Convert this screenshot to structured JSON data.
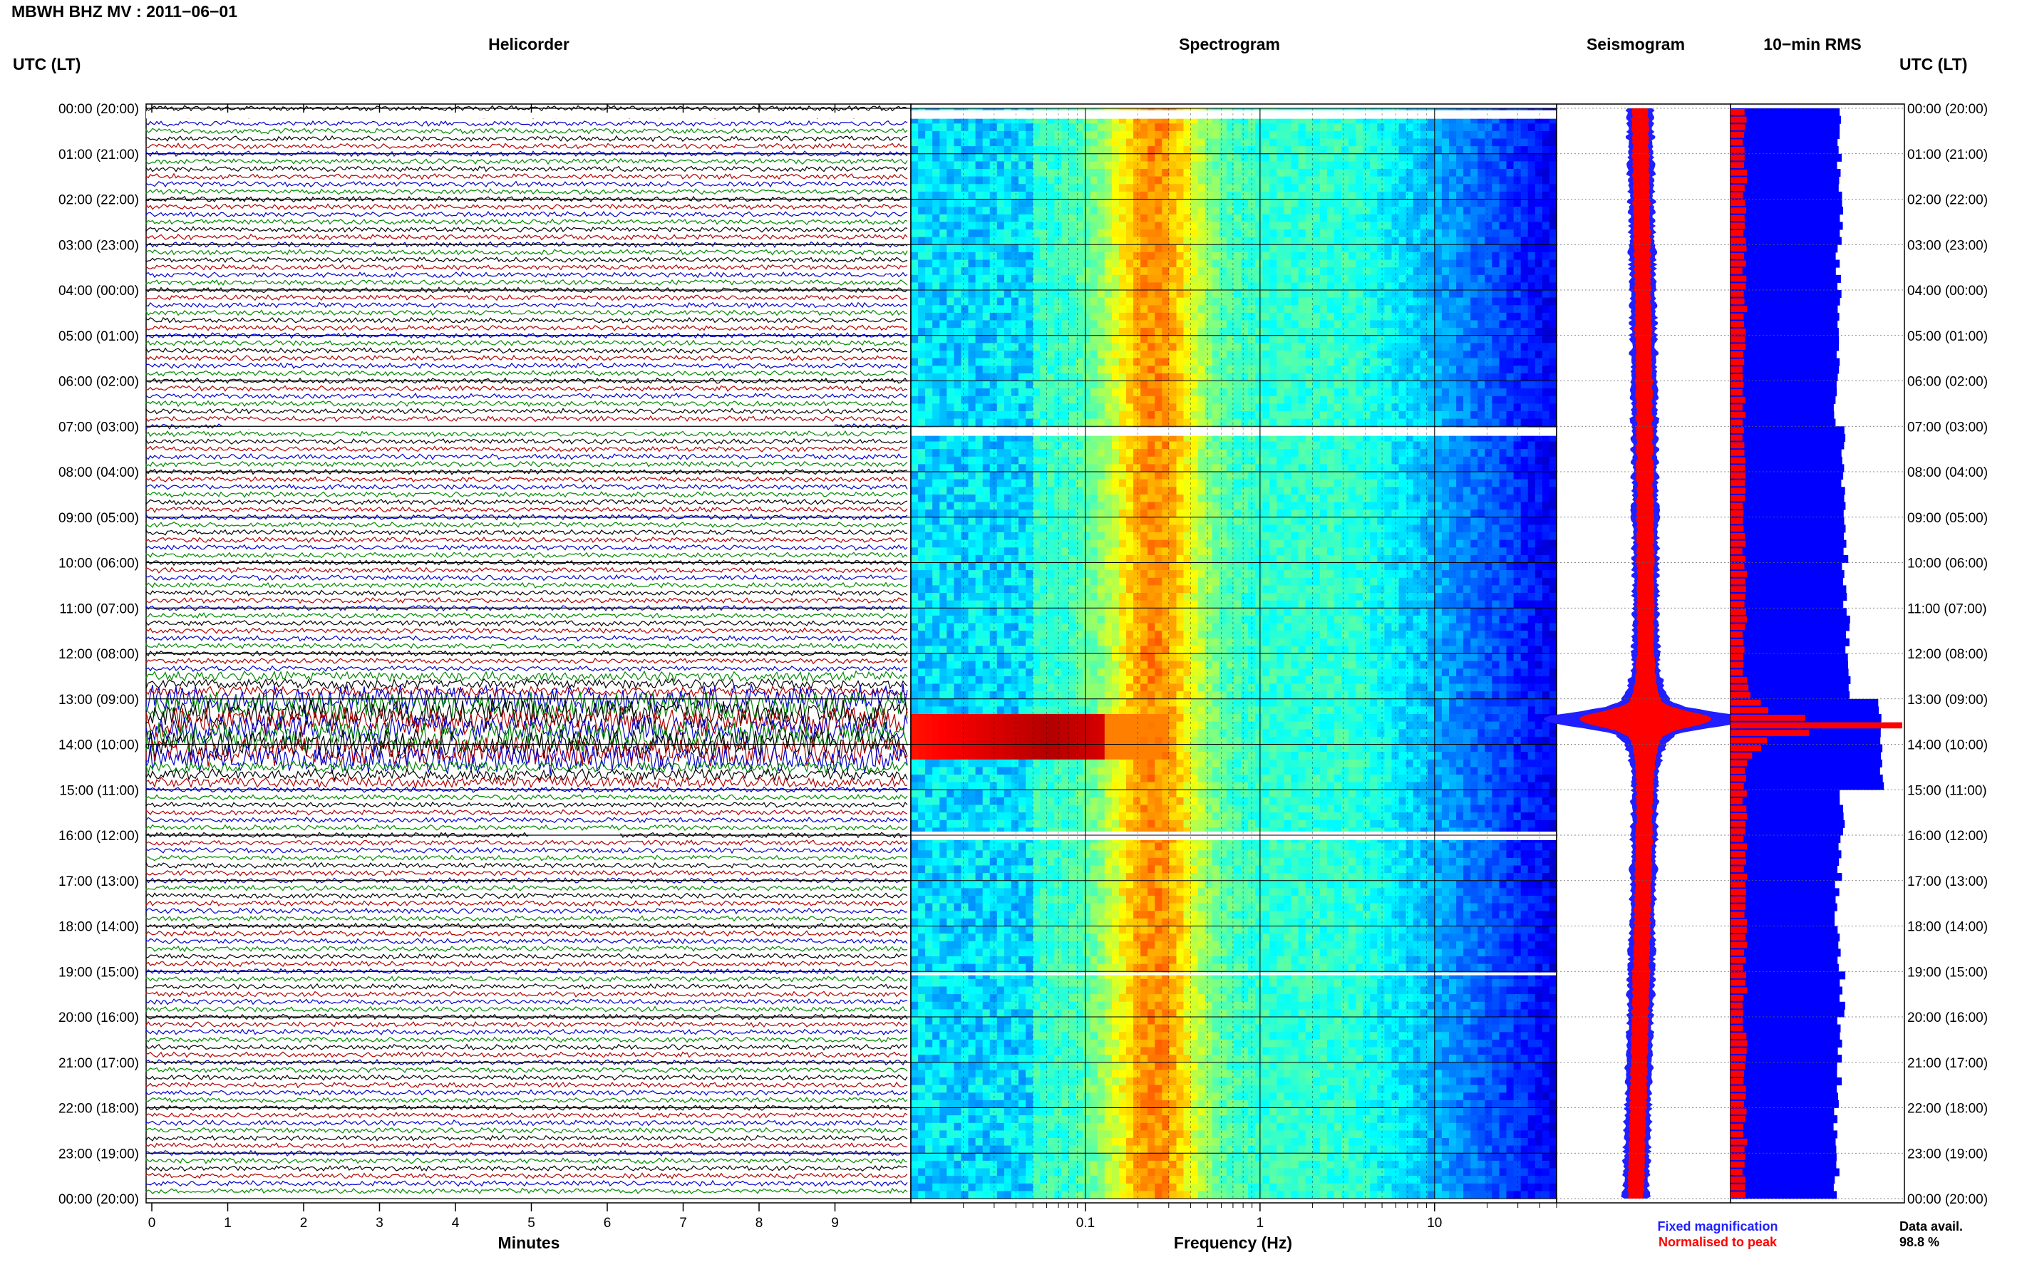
{
  "header": {
    "station_title": "MBWH BHZ MV : 2011−06−01"
  },
  "axis_labels": {
    "left_title": "UTC (LT)",
    "right_title": "UTC (LT)"
  },
  "time_labels": [
    "00:00 (20:00)",
    "01:00 (21:00)",
    "02:00 (22:00)",
    "03:00 (23:00)",
    "04:00 (00:00)",
    "05:00 (01:00)",
    "06:00 (02:00)",
    "07:00 (03:00)",
    "08:00 (04:00)",
    "09:00 (05:00)",
    "10:00 (06:00)",
    "11:00 (07:00)",
    "12:00 (08:00)",
    "13:00 (09:00)",
    "14:00 (10:00)",
    "15:00 (11:00)",
    "16:00 (12:00)",
    "17:00 (13:00)",
    "18:00 (14:00)",
    "19:00 (15:00)",
    "20:00 (16:00)",
    "21:00 (17:00)",
    "22:00 (18:00)",
    "23:00 (19:00)",
    "00:00 (20:00)"
  ],
  "panels": {
    "helicorder": {
      "title": "Helicorder",
      "xlabel": "Minutes",
      "x_ticks": [
        "0",
        "1",
        "2",
        "3",
        "4",
        "5",
        "6",
        "7",
        "8",
        "9"
      ],
      "trace_colors": [
        "#000000",
        "#b00000",
        "#0000cc",
        "#008800"
      ],
      "traces_per_hour": 6,
      "minutes_per_trace": 10
    },
    "spectrogram": {
      "title": "Spectrogram",
      "xlabel": "Frequency (Hz)",
      "x_ticks": [
        "0.1",
        "1",
        "10"
      ],
      "freq_range_hz": [
        0.01,
        50
      ],
      "scale": "log"
    },
    "seismogram": {
      "title": "Seismogram",
      "legend": [
        {
          "label": "Fixed magnification",
          "color": "#1f1fff"
        },
        {
          "label": "Normalised to peak",
          "color": "#ff0000"
        }
      ]
    },
    "rms": {
      "title": "10−min RMS",
      "data_avail_label": "Data avail.",
      "data_avail_value": "98.8 %"
    }
  },
  "chart_data": {
    "type": "heatmap",
    "title": "MBWH BHZ MV : 2011−06−01",
    "y_axis": "UTC hour (local time)",
    "hours_utc": [
      0,
      1,
      2,
      3,
      4,
      5,
      6,
      7,
      8,
      9,
      10,
      11,
      12,
      13,
      14,
      15,
      16,
      17,
      18,
      19,
      20,
      21,
      22,
      23,
      24
    ],
    "data_gaps_utc": [
      "00:10",
      "07:00",
      "16:00"
    ],
    "event_window_utc": [
      "13:00",
      "14:30"
    ],
    "peak_event_utc": "13:30",
    "data_availability_percent": 98.8,
    "rms_relative_hourly": [
      0.72,
      0.72,
      0.73,
      0.71,
      0.72,
      0.71,
      0.7,
      0.74,
      0.75,
      0.76,
      0.75,
      0.77,
      0.78,
      0.98,
      1.0,
      0.74,
      0.72,
      0.7,
      0.72,
      0.74,
      0.72,
      0.72,
      0.7,
      0.7
    ],
    "spectrogram_peak_band_hz": [
      0.2,
      0.3
    ]
  }
}
